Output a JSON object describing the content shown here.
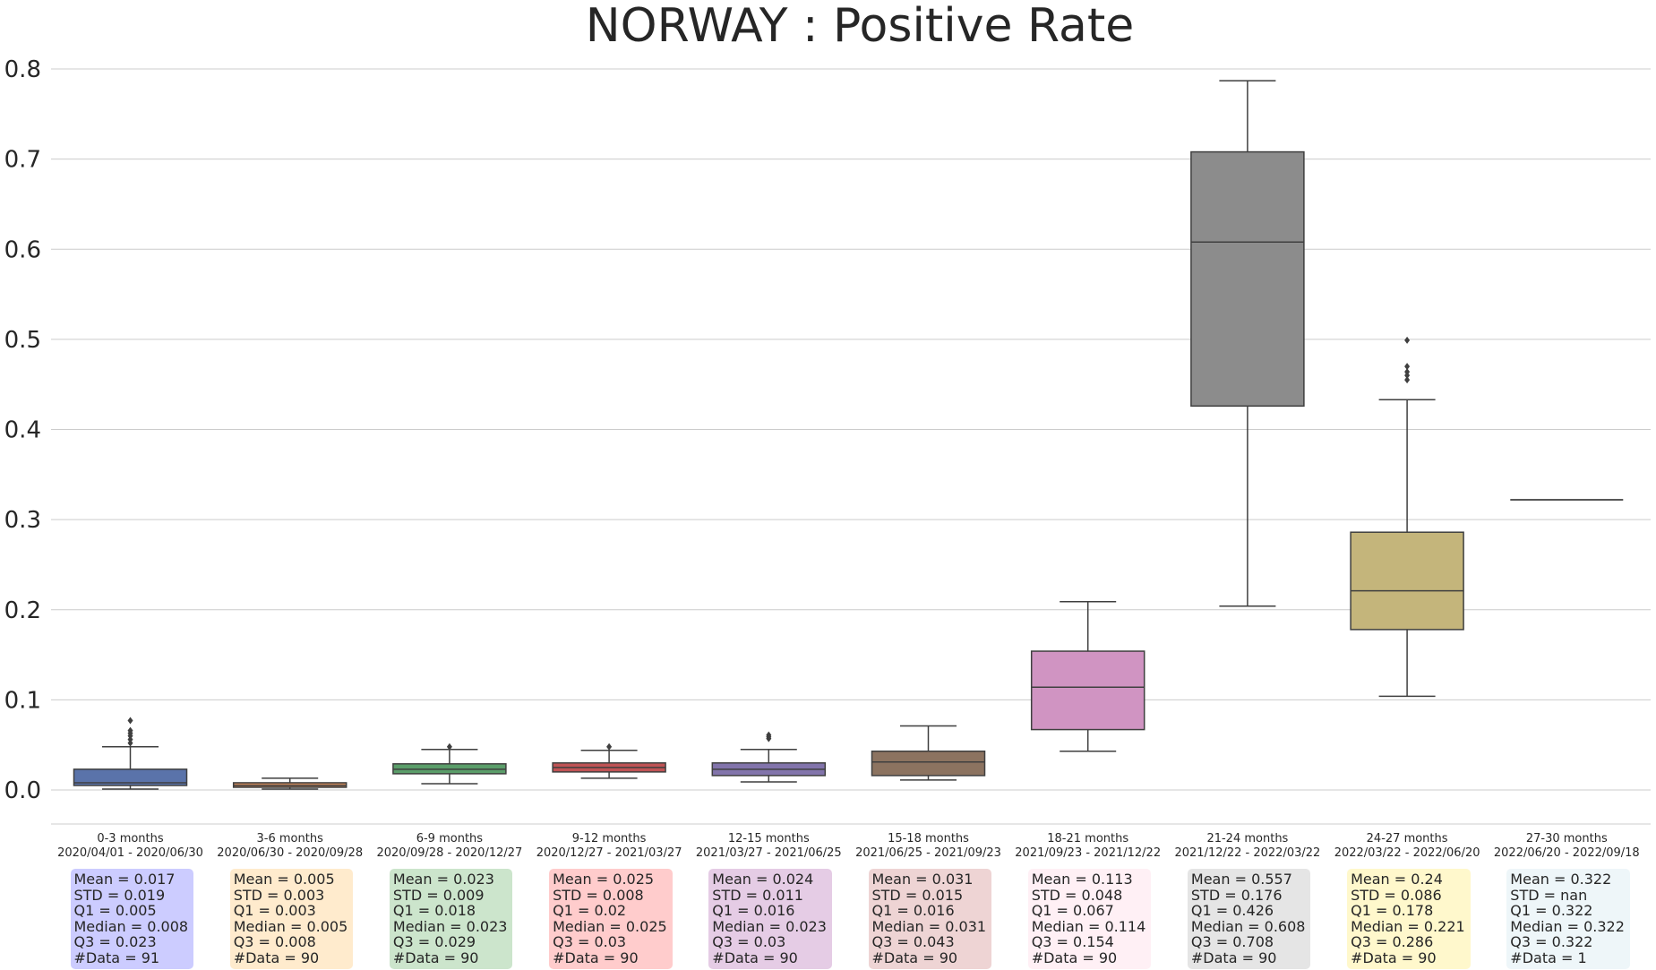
{
  "chart_data": {
    "type": "box",
    "title": "NORWAY : Positive Rate",
    "xlabel": "",
    "ylabel": "",
    "ylim": [
      -0.038,
      0.82
    ],
    "yticks": [
      "0.0",
      "0.1",
      "0.2",
      "0.3",
      "0.4",
      "0.5",
      "0.6",
      "0.7",
      "0.8"
    ],
    "grid": "horizontal",
    "groups": [
      {
        "label": "0-3 months",
        "dates": "2020/04/01 - 2020/06/30",
        "color": "#5a73aa",
        "box_color": "#ccccff",
        "q1": 0.005,
        "median": 0.008,
        "q3": 0.023,
        "whisker_low": 0.001,
        "whisker_high": 0.048,
        "outliers": [
          0.052,
          0.056,
          0.06,
          0.063,
          0.066,
          0.077
        ],
        "stats": [
          "Mean = 0.017",
          "STD = 0.019",
          "Q1 = 0.005",
          "Median = 0.008",
          "Q3 = 0.023",
          "#Data = 91"
        ]
      },
      {
        "label": "3-6 months",
        "dates": "2020/06/30 - 2020/09/28",
        "color": "#c9875a",
        "box_color": "#ffebcd",
        "q1": 0.003,
        "median": 0.005,
        "q3": 0.008,
        "whisker_low": 0.001,
        "whisker_high": 0.013,
        "outliers": [],
        "stats": [
          "Mean = 0.005",
          "STD = 0.003",
          "Q1 = 0.003",
          "Median = 0.005",
          "Q3 = 0.008",
          "#Data = 90"
        ]
      },
      {
        "label": "6-9 months",
        "dates": "2020/09/28 - 2020/12/27",
        "color": "#5b9e6a",
        "box_color": "#cce5cc",
        "q1": 0.018,
        "median": 0.023,
        "q3": 0.029,
        "whisker_low": 0.007,
        "whisker_high": 0.045,
        "outliers": [
          0.048
        ],
        "stats": [
          "Mean = 0.023",
          "STD = 0.009",
          "Q1 = 0.018",
          "Median = 0.023",
          "Q3 = 0.029",
          "#Data = 90"
        ]
      },
      {
        "label": "9-12 months",
        "dates": "2020/12/27 - 2021/03/27",
        "color": "#c05355",
        "box_color": "#ffcccc",
        "q1": 0.02,
        "median": 0.025,
        "q3": 0.03,
        "whisker_low": 0.013,
        "whisker_high": 0.044,
        "outliers": [
          0.048
        ],
        "stats": [
          "Mean = 0.025",
          "STD = 0.008",
          "Q1 = 0.02",
          "Median = 0.025",
          "Q3 = 0.03",
          "#Data = 90"
        ]
      },
      {
        "label": "12-15 months",
        "dates": "2021/03/27 - 2021/06/25",
        "color": "#8274ab",
        "box_color": "#e5cce5",
        "q1": 0.016,
        "median": 0.023,
        "q3": 0.03,
        "whisker_low": 0.009,
        "whisker_high": 0.045,
        "outliers": [
          0.057,
          0.059,
          0.061
        ],
        "stats": [
          "Mean = 0.024",
          "STD = 0.011",
          "Q1 = 0.016",
          "Median = 0.023",
          "Q3 = 0.03",
          "#Data = 90"
        ]
      },
      {
        "label": "15-18 months",
        "dates": "2021/06/25 - 2021/09/23",
        "color": "#8c7360",
        "box_color": "#eed4d4",
        "q1": 0.016,
        "median": 0.031,
        "q3": 0.043,
        "whisker_low": 0.011,
        "whisker_high": 0.071,
        "outliers": [],
        "stats": [
          "Mean = 0.031",
          "STD = 0.015",
          "Q1 = 0.016",
          "Median = 0.031",
          "Q3 = 0.043",
          "#Data = 90"
        ]
      },
      {
        "label": "18-21 months",
        "dates": "2021/09/23 - 2021/12/22",
        "color": "#d094c2",
        "box_color": "#fff0f5",
        "q1": 0.067,
        "median": 0.114,
        "q3": 0.154,
        "whisker_low": 0.043,
        "whisker_high": 0.209,
        "outliers": [],
        "stats": [
          "Mean = 0.113",
          "STD = 0.048",
          "Q1 = 0.067",
          "Median = 0.114",
          "Q3 = 0.154",
          "#Data = 90"
        ]
      },
      {
        "label": "21-24 months",
        "dates": "2021/12/22 - 2022/03/22",
        "color": "#8c8c8c",
        "box_color": "#e5e5e5",
        "q1": 0.426,
        "median": 0.608,
        "q3": 0.708,
        "whisker_low": 0.204,
        "whisker_high": 0.787,
        "outliers": [],
        "stats": [
          "Mean = 0.557",
          "STD = 0.176",
          "Q1 = 0.426",
          "Median = 0.608",
          "Q3 = 0.708",
          "#Data = 90"
        ]
      },
      {
        "label": "24-27 months",
        "dates": "2022/03/22 - 2022/06/20",
        "color": "#c4b57b",
        "box_color": "#fff8cc",
        "q1": 0.178,
        "median": 0.221,
        "q3": 0.286,
        "whisker_low": 0.104,
        "whisker_high": 0.433,
        "outliers": [
          0.455,
          0.46,
          0.464,
          0.47,
          0.499
        ],
        "stats": [
          "Mean = 0.24",
          "STD = 0.086",
          "Q1 = 0.178",
          "Median = 0.221",
          "Q3 = 0.286",
          "#Data = 90"
        ]
      },
      {
        "label": "27-30 months",
        "dates": "2022/06/20 - 2022/09/18",
        "color": "#6fa7c2",
        "box_color": "#eef6f9",
        "q1": 0.322,
        "median": 0.322,
        "q3": 0.322,
        "whisker_low": 0.322,
        "whisker_high": 0.322,
        "outliers": [],
        "stats": [
          "Mean = 0.322",
          "STD = nan",
          "Q1 = 0.322",
          "Median = 0.322",
          "Q3 = 0.322",
          "#Data = 1"
        ]
      }
    ]
  }
}
